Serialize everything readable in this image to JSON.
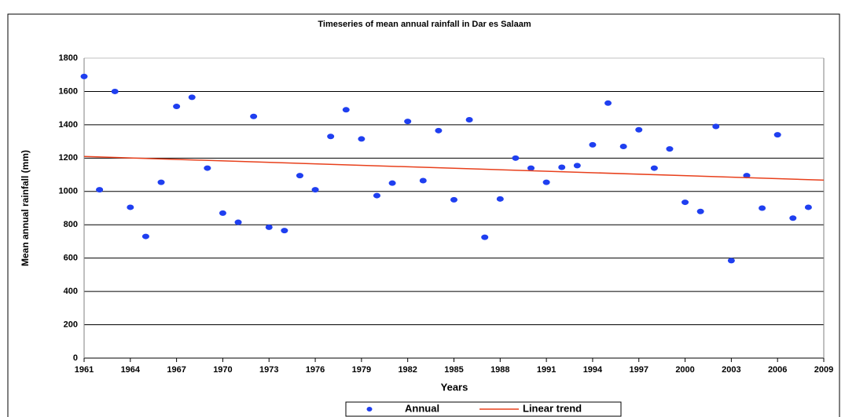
{
  "chart_data": {
    "type": "scatter",
    "title": "Timeseries of mean annual rainfall in Dar es Salaam",
    "x_label": "Years",
    "y_label": "Mean annual rainfall (mm)",
    "xlim": [
      1961,
      2009
    ],
    "xticks": [
      1961,
      1964,
      1967,
      1970,
      1973,
      1976,
      1979,
      1982,
      1985,
      1988,
      1991,
      1994,
      1997,
      2000,
      2003,
      2006,
      2009
    ],
    "ylim": [
      0,
      1800
    ],
    "yticks": [
      0,
      200,
      400,
      600,
      800,
      1000,
      1200,
      1400,
      1600,
      1800
    ],
    "grid": true,
    "legend": "bottom",
    "series": [
      {
        "name": "Annual",
        "type": "scatter",
        "color": "#1f3ff0",
        "x": [
          1961,
          1962,
          1963,
          1964,
          1965,
          1966,
          1967,
          1968,
          1969,
          1970,
          1971,
          1972,
          1973,
          1974,
          1975,
          1976,
          1977,
          1978,
          1979,
          1980,
          1981,
          1982,
          1983,
          1984,
          1985,
          1986,
          1987,
          1988,
          1989,
          1990,
          1991,
          1992,
          1993,
          1994,
          1995,
          1996,
          1997,
          1998,
          1999,
          2000,
          2001,
          2002,
          2003,
          2004,
          2005,
          2006,
          2007,
          2008
        ],
        "values": [
          1690,
          1010,
          1600,
          905,
          730,
          1055,
          1510,
          1565,
          1140,
          870,
          815,
          1450,
          785,
          765,
          1095,
          1010,
          1330,
          1490,
          1315,
          975,
          1050,
          1420,
          1065,
          1365,
          950,
          1430,
          725,
          955,
          1200,
          1140,
          1055,
          1145,
          1155,
          1280,
          1530,
          1270,
          1370,
          1140,
          1255,
          935,
          880,
          1390,
          585,
          1095,
          900,
          1340,
          840,
          905
        ]
      },
      {
        "name": "Linear trend",
        "type": "line",
        "color": "#e8401c",
        "x": [
          1961,
          2009
        ],
        "values": [
          1210,
          1068
        ]
      }
    ]
  }
}
